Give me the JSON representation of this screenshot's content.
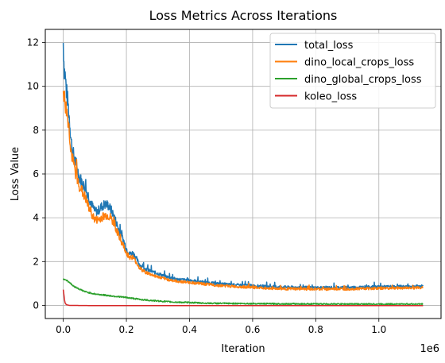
{
  "chart_data": {
    "type": "line",
    "title": "Loss Metrics Across Iterations",
    "xlabel": "Iteration",
    "ylabel": "Loss Value",
    "x_offset_text": "1e6",
    "xlim": [
      -0.057,
      1.197
    ],
    "ylim": [
      -0.6,
      12.6
    ],
    "x_ticks": [
      0.0,
      0.2,
      0.4,
      0.6,
      0.8,
      1.0
    ],
    "x_tick_labels": [
      "0.0",
      "0.2",
      "0.4",
      "0.6",
      "0.8",
      "1.0"
    ],
    "y_ticks": [
      0,
      2,
      4,
      6,
      8,
      10,
      12
    ],
    "y_tick_labels": [
      "0",
      "2",
      "4",
      "6",
      "8",
      "10",
      "12"
    ],
    "grid": true,
    "legend_position": "upper-right",
    "x_scale_factor": 1000000,
    "series": [
      {
        "name": "total_loss",
        "color": "#1f77b4",
        "points": [
          [
            0.0,
            12.0
          ],
          [
            0.003,
            10.8
          ],
          [
            0.006,
            10.5
          ],
          [
            0.01,
            9.8
          ],
          [
            0.015,
            9.2
          ],
          [
            0.02,
            8.4
          ],
          [
            0.025,
            7.5
          ],
          [
            0.03,
            7.0
          ],
          [
            0.04,
            6.5
          ],
          [
            0.05,
            5.9
          ],
          [
            0.06,
            5.6
          ],
          [
            0.07,
            5.3
          ],
          [
            0.08,
            5.0
          ],
          [
            0.09,
            4.6
          ],
          [
            0.1,
            4.3
          ],
          [
            0.11,
            4.3
          ],
          [
            0.12,
            4.5
          ],
          [
            0.13,
            4.6
          ],
          [
            0.14,
            4.6
          ],
          [
            0.15,
            4.4
          ],
          [
            0.16,
            4.1
          ],
          [
            0.17,
            3.7
          ],
          [
            0.18,
            3.3
          ],
          [
            0.19,
            3.0
          ],
          [
            0.2,
            2.6
          ],
          [
            0.21,
            2.35
          ],
          [
            0.22,
            2.4
          ],
          [
            0.23,
            2.2
          ],
          [
            0.24,
            1.9
          ],
          [
            0.25,
            1.75
          ],
          [
            0.27,
            1.6
          ],
          [
            0.3,
            1.45
          ],
          [
            0.33,
            1.3
          ],
          [
            0.36,
            1.2
          ],
          [
            0.4,
            1.15
          ],
          [
            0.45,
            1.05
          ],
          [
            0.5,
            0.98
          ],
          [
            0.55,
            0.93
          ],
          [
            0.6,
            0.9
          ],
          [
            0.65,
            0.86
          ],
          [
            0.7,
            0.84
          ],
          [
            0.75,
            0.82
          ],
          [
            0.8,
            0.81
          ],
          [
            0.85,
            0.82
          ],
          [
            0.9,
            0.82
          ],
          [
            0.95,
            0.84
          ],
          [
            1.0,
            0.85
          ],
          [
            1.05,
            0.86
          ],
          [
            1.1,
            0.87
          ],
          [
            1.14,
            0.88
          ]
        ]
      },
      {
        "name": "dino_local_crops_loss",
        "color": "#ff7f0e",
        "points": [
          [
            0.0,
            10.0
          ],
          [
            0.003,
            9.5
          ],
          [
            0.006,
            9.2
          ],
          [
            0.01,
            8.9
          ],
          [
            0.015,
            8.5
          ],
          [
            0.02,
            7.8
          ],
          [
            0.025,
            7.0
          ],
          [
            0.03,
            6.6
          ],
          [
            0.04,
            6.0
          ],
          [
            0.05,
            5.5
          ],
          [
            0.06,
            5.2
          ],
          [
            0.07,
            4.9
          ],
          [
            0.08,
            4.5
          ],
          [
            0.09,
            4.2
          ],
          [
            0.1,
            3.9
          ],
          [
            0.11,
            3.9
          ],
          [
            0.12,
            4.0
          ],
          [
            0.13,
            4.1
          ],
          [
            0.14,
            4.1
          ],
          [
            0.15,
            4.0
          ],
          [
            0.16,
            3.7
          ],
          [
            0.17,
            3.4
          ],
          [
            0.18,
            3.0
          ],
          [
            0.19,
            2.75
          ],
          [
            0.2,
            2.4
          ],
          [
            0.21,
            2.2
          ],
          [
            0.22,
            2.2
          ],
          [
            0.23,
            2.0
          ],
          [
            0.24,
            1.75
          ],
          [
            0.25,
            1.6
          ],
          [
            0.27,
            1.45
          ],
          [
            0.3,
            1.3
          ],
          [
            0.33,
            1.18
          ],
          [
            0.36,
            1.1
          ],
          [
            0.4,
            1.05
          ],
          [
            0.45,
            0.97
          ],
          [
            0.5,
            0.9
          ],
          [
            0.55,
            0.86
          ],
          [
            0.6,
            0.82
          ],
          [
            0.65,
            0.78
          ],
          [
            0.7,
            0.76
          ],
          [
            0.75,
            0.75
          ],
          [
            0.8,
            0.74
          ],
          [
            0.85,
            0.75
          ],
          [
            0.9,
            0.75
          ],
          [
            0.95,
            0.77
          ],
          [
            1.0,
            0.78
          ],
          [
            1.05,
            0.79
          ],
          [
            1.1,
            0.8
          ],
          [
            1.14,
            0.81
          ]
        ]
      },
      {
        "name": "dino_global_crops_loss",
        "color": "#2ca02c",
        "points": [
          [
            0.0,
            1.2
          ],
          [
            0.01,
            1.15
          ],
          [
            0.02,
            1.05
          ],
          [
            0.03,
            0.9
          ],
          [
            0.05,
            0.75
          ],
          [
            0.07,
            0.62
          ],
          [
            0.1,
            0.52
          ],
          [
            0.13,
            0.47
          ],
          [
            0.16,
            0.42
          ],
          [
            0.2,
            0.36
          ],
          [
            0.25,
            0.26
          ],
          [
            0.3,
            0.2
          ],
          [
            0.35,
            0.15
          ],
          [
            0.4,
            0.13
          ],
          [
            0.45,
            0.1
          ],
          [
            0.5,
            0.09
          ],
          [
            0.6,
            0.08
          ],
          [
            0.7,
            0.07
          ],
          [
            0.8,
            0.065
          ],
          [
            0.9,
            0.06
          ],
          [
            1.0,
            0.06
          ],
          [
            1.14,
            0.06
          ]
        ]
      },
      {
        "name": "koleo_loss",
        "color": "#d62728",
        "points": [
          [
            0.0,
            0.72
          ],
          [
            0.002,
            0.5
          ],
          [
            0.004,
            0.25
          ],
          [
            0.006,
            0.1
          ],
          [
            0.01,
            0.03
          ],
          [
            0.02,
            0.0
          ],
          [
            0.1,
            -0.01
          ],
          [
            0.5,
            -0.01
          ],
          [
            1.0,
            -0.01
          ],
          [
            1.14,
            -0.01
          ]
        ]
      }
    ]
  }
}
